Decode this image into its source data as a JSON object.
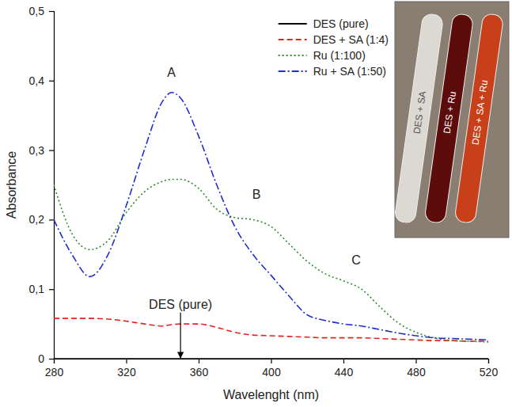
{
  "chart_data": {
    "type": "line",
    "x_label": "Wavelenght (nm)",
    "y_label": "Absorbance",
    "x": [
      280,
      290,
      300,
      310,
      320,
      330,
      340,
      345,
      350,
      360,
      370,
      380,
      390,
      400,
      410,
      420,
      430,
      440,
      450,
      460,
      470,
      480,
      490,
      500,
      510,
      520
    ],
    "series": [
      {
        "name": "DES (pure)",
        "color": "#000000",
        "line_style": "solid",
        "values": [
          0,
          0,
          0,
          0,
          0,
          0,
          0,
          0,
          0,
          0,
          0,
          0,
          0,
          0,
          0,
          0,
          0,
          0,
          0,
          0,
          0,
          0,
          0,
          0,
          0,
          0
        ]
      },
      {
        "name": "DES + SA (1:4)",
        "color": "#e8231f",
        "line_style": "dashed",
        "values": [
          0.058,
          0.058,
          0.058,
          0.057,
          0.054,
          0.05,
          0.047,
          0.049,
          0.05,
          0.05,
          0.045,
          0.038,
          0.034,
          0.033,
          0.032,
          0.031,
          0.03,
          0.03,
          0.03,
          0.029,
          0.028,
          0.027,
          0.026,
          0.026,
          0.025,
          0.025
        ]
      },
      {
        "name": "Ru (1:100)",
        "color": "#2e8b2e",
        "line_style": "dotted",
        "values": [
          0.25,
          0.18,
          0.157,
          0.17,
          0.21,
          0.24,
          0.255,
          0.258,
          0.258,
          0.245,
          0.215,
          0.203,
          0.2,
          0.19,
          0.165,
          0.14,
          0.122,
          0.112,
          0.1,
          0.075,
          0.052,
          0.038,
          0.03,
          0.026,
          0.025,
          0.024
        ]
      },
      {
        "name": "Ru + SA (1:50)",
        "color": "#1f2fc8",
        "line_style": "dashdot",
        "values": [
          0.2,
          0.15,
          0.118,
          0.15,
          0.22,
          0.3,
          0.37,
          0.383,
          0.375,
          0.32,
          0.25,
          0.19,
          0.15,
          0.12,
          0.09,
          0.063,
          0.055,
          0.05,
          0.047,
          0.042,
          0.037,
          0.033,
          0.03,
          0.029,
          0.028,
          0.027
        ]
      }
    ],
    "xlim": [
      280,
      520
    ],
    "xticks": [
      280,
      320,
      360,
      400,
      440,
      480,
      520
    ],
    "ylim": [
      0,
      0.5
    ],
    "yticks": [
      0,
      {
        "value": 0.1,
        "label": "0,1"
      },
      {
        "value": 0.2,
        "label": "0,2"
      },
      {
        "value": 0.3,
        "label": "0,3"
      },
      {
        "value": 0.4,
        "label": "0,4"
      },
      {
        "value": 0.5,
        "label": "0,5"
      }
    ],
    "grid": false,
    "legend": "upper right",
    "annotations": [
      {
        "text": "A",
        "x": 345,
        "y": 0.405
      },
      {
        "text": "B",
        "x": 392,
        "y": 0.23
      },
      {
        "text": "C",
        "x": 447,
        "y": 0.135
      },
      {
        "text": "DES (pure)",
        "x": 350,
        "y": 0.072,
        "arrow_to": [
          350,
          0
        ]
      }
    ],
    "inset_labels": [
      "DES + SA",
      "DES + Ru",
      "DES + SA + Ru"
    ]
  }
}
